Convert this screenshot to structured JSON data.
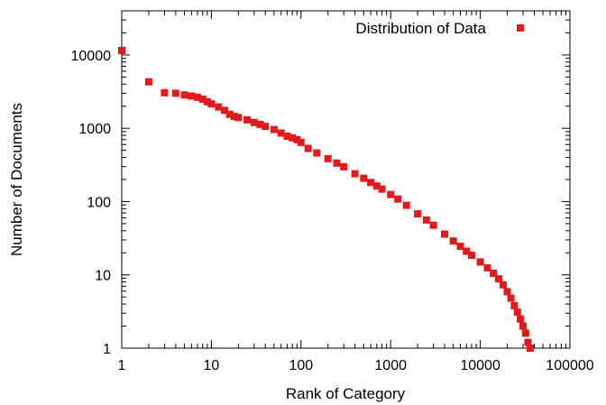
{
  "chart_data": {
    "type": "scatter",
    "title": "",
    "xlabel": "Rank of Category",
    "ylabel": "Number of Documents",
    "xscale": "log",
    "yscale": "log",
    "xlim": [
      1,
      100000
    ],
    "ylim": [
      1,
      40000
    ],
    "xticks": [
      {
        "value": 1,
        "label": "1"
      },
      {
        "value": 10,
        "label": "10"
      },
      {
        "value": 100,
        "label": "100"
      },
      {
        "value": 1000,
        "label": "1000"
      },
      {
        "value": 10000,
        "label": "10000"
      },
      {
        "value": 100000,
        "label": "100000"
      }
    ],
    "yticks": [
      {
        "value": 1,
        "label": "1"
      },
      {
        "value": 10,
        "label": "10"
      },
      {
        "value": 100,
        "label": "100"
      },
      {
        "value": 1000,
        "label": "1000"
      },
      {
        "value": 10000,
        "label": "10000"
      }
    ],
    "grid": false,
    "legend_position": "top-right",
    "series": [
      {
        "name": "Distribution of Data",
        "color": "#e31a1c",
        "marker": "square",
        "x": [
          1,
          2,
          3,
          4,
          5,
          6,
          7,
          8,
          9,
          10,
          12,
          14,
          16,
          18,
          20,
          25,
          30,
          35,
          40,
          50,
          60,
          70,
          80,
          90,
          100,
          120,
          150,
          200,
          250,
          300,
          400,
          500,
          600,
          700,
          800,
          1000,
          1200,
          1500,
          2000,
          2500,
          3000,
          4000,
          5000,
          6000,
          7000,
          8000,
          10000,
          12000,
          14000,
          16000,
          18000,
          20000,
          22000,
          24000,
          26000,
          28000,
          30000,
          32000,
          34000,
          36000
        ],
        "y": [
          11500,
          4300,
          3050,
          3000,
          2850,
          2750,
          2650,
          2500,
          2300,
          2150,
          1950,
          1750,
          1550,
          1450,
          1400,
          1300,
          1200,
          1130,
          1060,
          960,
          860,
          780,
          740,
          700,
          640,
          530,
          460,
          385,
          335,
          298,
          240,
          208,
          182,
          163,
          148,
          125,
          108,
          89,
          68,
          56,
          47.5,
          36,
          29,
          24.5,
          21,
          18.5,
          15,
          12.5,
          10.5,
          8.8,
          7.3,
          5.9,
          4.8,
          3.8,
          3.1,
          2.5,
          2.0,
          1.6,
          1.2,
          1.0
        ]
      }
    ]
  }
}
